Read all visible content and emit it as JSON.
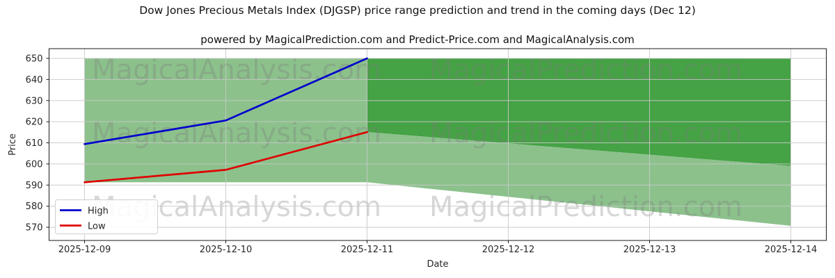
{
  "title": "Dow Jones Precious Metals Index (DJGSP) price range prediction and trend in the coming days (Dec 12)",
  "subtitle": "powered by MagicalPrediction.com and Predict-Price.com and MagicalAnalysis.com",
  "watermarks": {
    "left_text": "MagicalAnalysis.com",
    "right_text": "MagicalPrediction.com"
  },
  "legend": {
    "items": [
      {
        "label": "High",
        "color": "#0000cd"
      },
      {
        "label": "Low",
        "color": "#e00000"
      }
    ]
  },
  "colors": {
    "high_line": "#0000cd",
    "low_line": "#e00000",
    "band_light_green": "#8cc18c",
    "band_dark_green": "#45a245",
    "grid": "#c9c9c9",
    "spine": "#1a1a1a"
  },
  "chart_data": {
    "type": "line",
    "title": "Dow Jones Precious Metals Index (DJGSP) price range prediction and trend in the coming days (Dec 12)",
    "xlabel": "Date",
    "ylabel": "Price",
    "x": [
      "2025-12-09",
      "2025-12-10",
      "2025-12-11",
      "2025-12-12",
      "2025-12-13",
      "2025-12-14"
    ],
    "yticks": [
      570,
      580,
      590,
      600,
      610,
      620,
      630,
      640,
      650
    ],
    "ylim": [
      563.7,
      654.6
    ],
    "grid": true,
    "legend_position": "lower left",
    "series": [
      {
        "name": "High",
        "color": "#0000cd",
        "x_indices": [
          0,
          1,
          2
        ],
        "values": [
          609.4,
          620.6,
          650.0
        ]
      },
      {
        "name": "Low",
        "color": "#e00000",
        "x_indices": [
          0,
          1,
          2
        ],
        "values": [
          591.3,
          597.2,
          615.1
        ]
      }
    ],
    "bands": [
      {
        "name": "observed-range",
        "color": "#8cc18c",
        "x_indices": [
          0,
          2
        ],
        "top": [
          650.0,
          650.0
        ],
        "bottom": [
          591.3,
          591.3
        ]
      },
      {
        "name": "forecast-range-dark",
        "color": "#45a245",
        "x_indices": [
          2,
          5
        ],
        "top": [
          650.0,
          650.0
        ],
        "bottom": [
          615.1,
          599.0
        ]
      },
      {
        "name": "forecast-range-light",
        "color": "#8cc18c",
        "x_indices": [
          2,
          5
        ],
        "top": [
          615.1,
          599.0
        ],
        "bottom": [
          591.3,
          570.7
        ]
      }
    ]
  }
}
